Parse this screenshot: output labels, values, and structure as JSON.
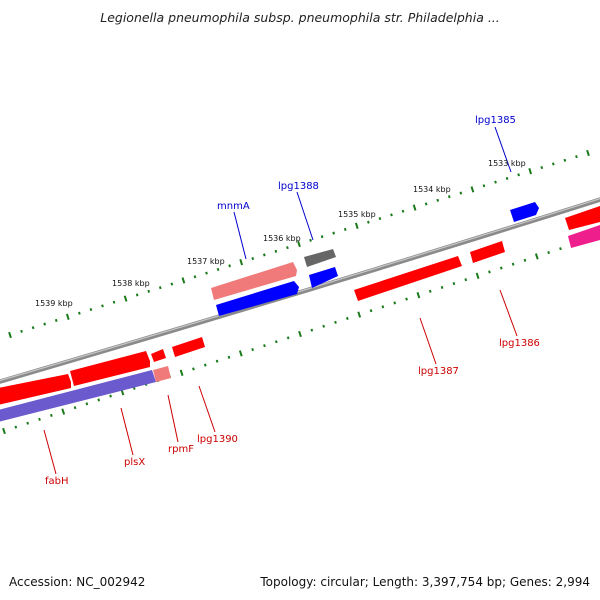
{
  "title": "Legionella pneumophila subsp. pneumophila str. Philadelphia ...",
  "footer": {
    "accession": "Accession: NC_002942",
    "summary": "Topology: circular; Length: 3,397,754 bp; Genes: 2,994"
  },
  "colors": {
    "backbone": "#8a8a8a",
    "tick": "#1a7a1a",
    "forward_label": "#0000cc",
    "reverse_label": "#cc0000",
    "gene_red": "#ff0000",
    "gene_blue": "#0000ff",
    "gene_pink": "#f07a7a",
    "gene_gray": "#666666",
    "gene_purple": "#6a5acd",
    "gene_magenta": "#ee1f8c"
  },
  "ticks": [
    {
      "label": "1533 kbp"
    },
    {
      "label": "1534 kbp"
    },
    {
      "label": "1535 kbp"
    },
    {
      "label": "1536 kbp"
    },
    {
      "label": "1537 kbp"
    },
    {
      "label": "1538 kbp"
    },
    {
      "label": "1539 kbp"
    }
  ],
  "gene_labels_forward": [
    {
      "text": "lpg1385"
    },
    {
      "text": "lpg1388"
    },
    {
      "text": "mnmA"
    }
  ],
  "gene_labels_reverse": [
    {
      "text": "lpg1386"
    },
    {
      "text": "lpg1387"
    },
    {
      "text": "lpg1390"
    },
    {
      "text": "rpmF"
    },
    {
      "text": "plsX"
    },
    {
      "text": "fabH"
    }
  ]
}
